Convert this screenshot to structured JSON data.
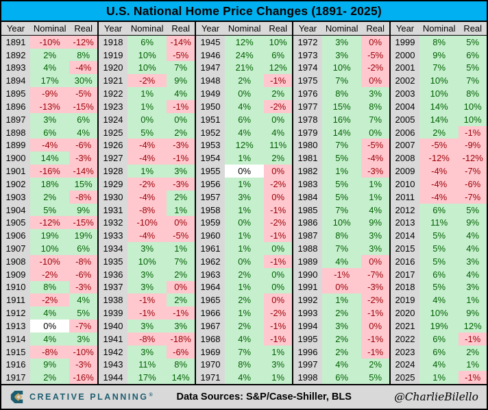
{
  "title": "U.S. National Home Price Changes (1891- 2025)",
  "footer": {
    "brand": "CREATIVE PLANNING",
    "trademark": "®",
    "sources": "Data Sources: S&P/Case-Shiller, BLS",
    "handle": "@CharlieBilello"
  },
  "colors": {
    "title_bg": "#00b0f0",
    "positive_bg": "#c6efce",
    "positive_text": "#006100",
    "negative_bg": "#ffc7ce",
    "negative_text": "#9c0006",
    "zero_bg": "#ffffff",
    "year_bg": "#d9d9d9",
    "footer_bg": "#d9d9d9",
    "brand_teal": "#1d5d70",
    "brand_gold": "#c5a35e"
  },
  "chart_data": {
    "type": "table",
    "title": "U.S. National Home Price Changes (1891- 2025)",
    "columns": [
      "Year",
      "Nominal",
      "Real"
    ],
    "column_groups": 5,
    "legend": "green cell = positive change, pink cell = negative change, white cell = 0% flat",
    "rows": [
      [
        "1891",
        "-10%",
        "neg",
        "-12%",
        "neg"
      ],
      [
        "1892",
        "2%",
        "pos",
        "8%",
        "pos"
      ],
      [
        "1893",
        "4%",
        "pos",
        "-4%",
        "neg"
      ],
      [
        "1894",
        "17%",
        "pos",
        "30%",
        "pos"
      ],
      [
        "1895",
        "-9%",
        "neg",
        "-5%",
        "neg"
      ],
      [
        "1896",
        "-13%",
        "neg",
        "-15%",
        "neg"
      ],
      [
        "1897",
        "3%",
        "pos",
        "6%",
        "pos"
      ],
      [
        "1898",
        "6%",
        "pos",
        "4%",
        "pos"
      ],
      [
        "1899",
        "-4%",
        "neg",
        "-6%",
        "neg"
      ],
      [
        "1900",
        "14%",
        "pos",
        "-3%",
        "neg"
      ],
      [
        "1901",
        "-16%",
        "neg",
        "-14%",
        "neg"
      ],
      [
        "1902",
        "18%",
        "pos",
        "15%",
        "pos"
      ],
      [
        "1903",
        "2%",
        "pos",
        "-8%",
        "neg"
      ],
      [
        "1904",
        "5%",
        "pos",
        "9%",
        "pos"
      ],
      [
        "1905",
        "-12%",
        "neg",
        "-15%",
        "neg"
      ],
      [
        "1906",
        "19%",
        "pos",
        "19%",
        "pos"
      ],
      [
        "1907",
        "10%",
        "pos",
        "6%",
        "pos"
      ],
      [
        "1908",
        "-10%",
        "neg",
        "-8%",
        "neg"
      ],
      [
        "1909",
        "-2%",
        "neg",
        "-6%",
        "neg"
      ],
      [
        "1910",
        "8%",
        "pos",
        "-3%",
        "neg"
      ],
      [
        "1911",
        "-2%",
        "neg",
        "4%",
        "pos"
      ],
      [
        "1912",
        "4%",
        "pos",
        "5%",
        "pos"
      ],
      [
        "1913",
        "0%",
        "zero",
        "-7%",
        "neg"
      ],
      [
        "1914",
        "4%",
        "pos",
        "3%",
        "pos"
      ],
      [
        "1915",
        "-8%",
        "neg",
        "-10%",
        "neg"
      ],
      [
        "1916",
        "9%",
        "pos",
        "-3%",
        "neg"
      ],
      [
        "1917",
        "2%",
        "pos",
        "-16%",
        "neg"
      ],
      [
        "1918",
        "6%",
        "pos",
        "-14%",
        "neg"
      ],
      [
        "1919",
        "10%",
        "pos",
        "-5%",
        "neg"
      ],
      [
        "1920",
        "10%",
        "pos",
        "7%",
        "pos"
      ],
      [
        "1921",
        "-2%",
        "neg",
        "9%",
        "pos"
      ],
      [
        "1922",
        "1%",
        "pos",
        "4%",
        "pos"
      ],
      [
        "1923",
        "1%",
        "pos",
        "-1%",
        "neg"
      ],
      [
        "1924",
        "0%",
        "pos",
        "0%",
        "pos"
      ],
      [
        "1925",
        "5%",
        "pos",
        "2%",
        "pos"
      ],
      [
        "1926",
        "-4%",
        "neg",
        "-3%",
        "neg"
      ],
      [
        "1927",
        "-4%",
        "neg",
        "-1%",
        "neg"
      ],
      [
        "1928",
        "1%",
        "pos",
        "3%",
        "pos"
      ],
      [
        "1929",
        "-2%",
        "neg",
        "-3%",
        "neg"
      ],
      [
        "1930",
        "-4%",
        "neg",
        "2%",
        "pos"
      ],
      [
        "1931",
        "-8%",
        "neg",
        "1%",
        "pos"
      ],
      [
        "1932",
        "-10%",
        "neg",
        "0%",
        "neg"
      ],
      [
        "1933",
        "-4%",
        "neg",
        "-5%",
        "neg"
      ],
      [
        "1934",
        "3%",
        "pos",
        "1%",
        "pos"
      ],
      [
        "1935",
        "10%",
        "pos",
        "7%",
        "pos"
      ],
      [
        "1936",
        "3%",
        "pos",
        "2%",
        "pos"
      ],
      [
        "1937",
        "3%",
        "pos",
        "0%",
        "neg"
      ],
      [
        "1938",
        "-1%",
        "neg",
        "2%",
        "pos"
      ],
      [
        "1939",
        "-1%",
        "neg",
        "-1%",
        "neg"
      ],
      [
        "1940",
        "3%",
        "pos",
        "3%",
        "pos"
      ],
      [
        "1941",
        "-8%",
        "neg",
        "-18%",
        "neg"
      ],
      [
        "1942",
        "3%",
        "pos",
        "-6%",
        "neg"
      ],
      [
        "1943",
        "11%",
        "pos",
        "8%",
        "pos"
      ],
      [
        "1944",
        "17%",
        "pos",
        "14%",
        "pos"
      ],
      [
        "1945",
        "12%",
        "pos",
        "10%",
        "pos"
      ],
      [
        "1946",
        "24%",
        "pos",
        "6%",
        "pos"
      ],
      [
        "1947",
        "21%",
        "pos",
        "12%",
        "pos"
      ],
      [
        "1948",
        "2%",
        "pos",
        "-1%",
        "neg"
      ],
      [
        "1949",
        "0%",
        "pos",
        "2%",
        "pos"
      ],
      [
        "1950",
        "4%",
        "pos",
        "-2%",
        "neg"
      ],
      [
        "1951",
        "6%",
        "pos",
        "0%",
        "pos"
      ],
      [
        "1952",
        "4%",
        "pos",
        "4%",
        "pos"
      ],
      [
        "1953",
        "12%",
        "pos",
        "11%",
        "pos"
      ],
      [
        "1954",
        "1%",
        "pos",
        "2%",
        "pos"
      ],
      [
        "1955",
        "0%",
        "zero",
        "0%",
        "neg"
      ],
      [
        "1956",
        "1%",
        "pos",
        "-2%",
        "neg"
      ],
      [
        "1957",
        "3%",
        "pos",
        "0%",
        "neg"
      ],
      [
        "1958",
        "1%",
        "pos",
        "-1%",
        "neg"
      ],
      [
        "1959",
        "0%",
        "pos",
        "-2%",
        "neg"
      ],
      [
        "1960",
        "1%",
        "pos",
        "-1%",
        "neg"
      ],
      [
        "1961",
        "1%",
        "pos",
        "0%",
        "pos"
      ],
      [
        "1962",
        "0%",
        "pos",
        "-1%",
        "neg"
      ],
      [
        "1963",
        "2%",
        "pos",
        "0%",
        "pos"
      ],
      [
        "1964",
        "1%",
        "pos",
        "0%",
        "pos"
      ],
      [
        "1965",
        "2%",
        "pos",
        "0%",
        "neg"
      ],
      [
        "1966",
        "1%",
        "pos",
        "-2%",
        "neg"
      ],
      [
        "1967",
        "2%",
        "pos",
        "-1%",
        "neg"
      ],
      [
        "1968",
        "4%",
        "pos",
        "-1%",
        "neg"
      ],
      [
        "1969",
        "7%",
        "pos",
        "1%",
        "pos"
      ],
      [
        "1970",
        "8%",
        "pos",
        "3%",
        "pos"
      ],
      [
        "1971",
        "4%",
        "pos",
        "1%",
        "pos"
      ],
      [
        "1972",
        "3%",
        "pos",
        "0%",
        "neg"
      ],
      [
        "1973",
        "3%",
        "pos",
        "-5%",
        "neg"
      ],
      [
        "1974",
        "10%",
        "pos",
        "-2%",
        "neg"
      ],
      [
        "1975",
        "7%",
        "pos",
        "0%",
        "neg"
      ],
      [
        "1976",
        "8%",
        "pos",
        "3%",
        "pos"
      ],
      [
        "1977",
        "15%",
        "pos",
        "8%",
        "pos"
      ],
      [
        "1978",
        "16%",
        "pos",
        "7%",
        "pos"
      ],
      [
        "1979",
        "14%",
        "pos",
        "0%",
        "pos"
      ],
      [
        "1980",
        "7%",
        "pos",
        "-5%",
        "neg"
      ],
      [
        "1981",
        "5%",
        "pos",
        "-4%",
        "neg"
      ],
      [
        "1982",
        "1%",
        "pos",
        "-3%",
        "neg"
      ],
      [
        "1983",
        "5%",
        "pos",
        "1%",
        "pos"
      ],
      [
        "1984",
        "5%",
        "pos",
        "1%",
        "pos"
      ],
      [
        "1985",
        "7%",
        "pos",
        "4%",
        "pos"
      ],
      [
        "1986",
        "10%",
        "pos",
        "9%",
        "pos"
      ],
      [
        "1987",
        "8%",
        "pos",
        "3%",
        "pos"
      ],
      [
        "1988",
        "7%",
        "pos",
        "3%",
        "pos"
      ],
      [
        "1989",
        "4%",
        "pos",
        "0%",
        "neg"
      ],
      [
        "1990",
        "-1%",
        "neg",
        "-7%",
        "neg"
      ],
      [
        "1991",
        "0%",
        "neg",
        "-3%",
        "neg"
      ],
      [
        "1992",
        "1%",
        "pos",
        "-2%",
        "neg"
      ],
      [
        "1993",
        "2%",
        "pos",
        "-1%",
        "neg"
      ],
      [
        "1994",
        "3%",
        "pos",
        "0%",
        "neg"
      ],
      [
        "1995",
        "2%",
        "pos",
        "-1%",
        "neg"
      ],
      [
        "1996",
        "2%",
        "pos",
        "-1%",
        "neg"
      ],
      [
        "1997",
        "4%",
        "pos",
        "2%",
        "pos"
      ],
      [
        "1998",
        "6%",
        "pos",
        "5%",
        "pos"
      ],
      [
        "1999",
        "8%",
        "pos",
        "5%",
        "pos"
      ],
      [
        "2000",
        "9%",
        "pos",
        "6%",
        "pos"
      ],
      [
        "2001",
        "7%",
        "pos",
        "5%",
        "pos"
      ],
      [
        "2002",
        "10%",
        "pos",
        "7%",
        "pos"
      ],
      [
        "2003",
        "10%",
        "pos",
        "8%",
        "pos"
      ],
      [
        "2004",
        "14%",
        "pos",
        "10%",
        "pos"
      ],
      [
        "2005",
        "14%",
        "pos",
        "10%",
        "pos"
      ],
      [
        "2006",
        "2%",
        "pos",
        "-1%",
        "neg"
      ],
      [
        "2007",
        "-5%",
        "neg",
        "-9%",
        "neg"
      ],
      [
        "2008",
        "-12%",
        "neg",
        "-12%",
        "neg"
      ],
      [
        "2009",
        "-4%",
        "neg",
        "-7%",
        "neg"
      ],
      [
        "2010",
        "-4%",
        "neg",
        "-6%",
        "neg"
      ],
      [
        "2011",
        "-4%",
        "neg",
        "-7%",
        "neg"
      ],
      [
        "2012",
        "6%",
        "pos",
        "5%",
        "pos"
      ],
      [
        "2013",
        "11%",
        "pos",
        "9%",
        "pos"
      ],
      [
        "2014",
        "5%",
        "pos",
        "4%",
        "pos"
      ],
      [
        "2015",
        "5%",
        "pos",
        "4%",
        "pos"
      ],
      [
        "2016",
        "5%",
        "pos",
        "3%",
        "pos"
      ],
      [
        "2017",
        "6%",
        "pos",
        "4%",
        "pos"
      ],
      [
        "2018",
        "5%",
        "pos",
        "3%",
        "pos"
      ],
      [
        "2019",
        "4%",
        "pos",
        "1%",
        "pos"
      ],
      [
        "2020",
        "10%",
        "pos",
        "9%",
        "pos"
      ],
      [
        "2021",
        "19%",
        "pos",
        "12%",
        "pos"
      ],
      [
        "2022",
        "6%",
        "pos",
        "-1%",
        "neg"
      ],
      [
        "2023",
        "6%",
        "pos",
        "2%",
        "pos"
      ],
      [
        "2024",
        "4%",
        "pos",
        "1%",
        "pos"
      ],
      [
        "2025",
        "1%",
        "pos",
        "-1%",
        "neg"
      ]
    ]
  }
}
